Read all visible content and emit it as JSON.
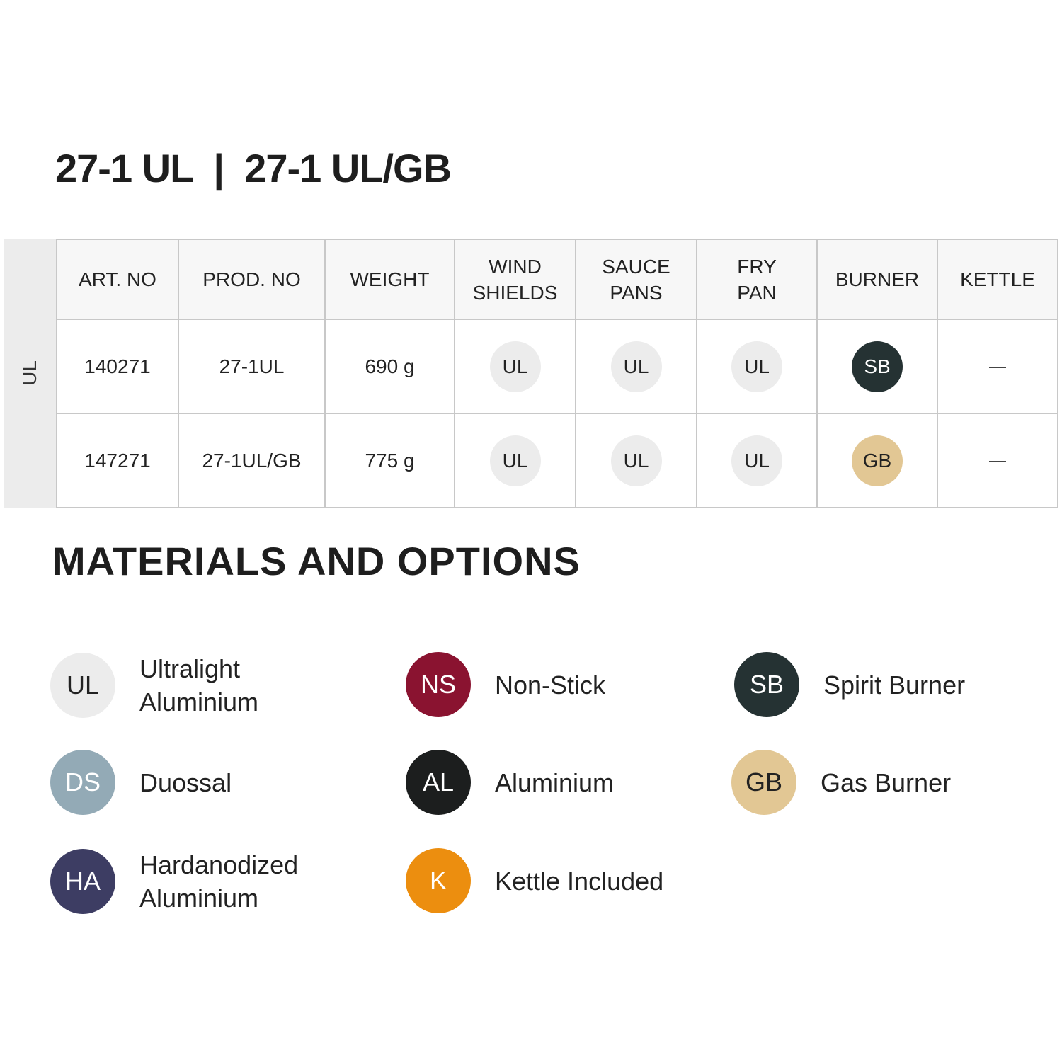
{
  "title": "27-1 UL  |  27-1 UL/GB",
  "side_label": "UL",
  "table": {
    "headers": [
      "ART. NO",
      "PROD. NO",
      "WEIGHT",
      "WIND\nSHIELDS",
      "SAUCE\nPANS",
      "FRY\nPAN",
      "BURNER",
      "KETTLE"
    ],
    "rows": [
      {
        "art_no": "140271",
        "prod_no": "27-1UL",
        "weight": "690 g",
        "wind_shields": "UL",
        "sauce_pans": "UL",
        "fry_pan": "UL",
        "burner": "SB",
        "kettle": "—"
      },
      {
        "art_no": "147271",
        "prod_no": "27-1UL/GB",
        "weight": "775 g",
        "wind_shields": "UL",
        "sauce_pans": "UL",
        "fry_pan": "UL",
        "burner": "GB",
        "kettle": "—"
      }
    ]
  },
  "materials_heading": "MATERIALS AND OPTIONS",
  "legend": [
    {
      "code": "UL",
      "label": "Ultralight Aluminium",
      "color": "#ececec",
      "text_color": "#222222"
    },
    {
      "code": "NS",
      "label": "Non-Stick",
      "color": "#8a1330",
      "text_color": "#ffffff"
    },
    {
      "code": "SB",
      "label": "Spirit Burner",
      "color": "#253233",
      "text_color": "#ffffff"
    },
    {
      "code": "DS",
      "label": "Duossal",
      "color": "#93aab6",
      "text_color": "#ffffff"
    },
    {
      "code": "AL",
      "label": "Aluminium",
      "color": "#1c1e1e",
      "text_color": "#ffffff"
    },
    {
      "code": "GB",
      "label": "Gas Burner",
      "color": "#e2c794",
      "text_color": "#222222"
    },
    {
      "code": "HA",
      "label": "Hardanodized Aluminium",
      "color": "#3d3d63",
      "text_color": "#ffffff"
    },
    {
      "code": "K",
      "label": "Kettle Included",
      "color": "#ec8e0f",
      "text_color": "#ffffff"
    }
  ]
}
